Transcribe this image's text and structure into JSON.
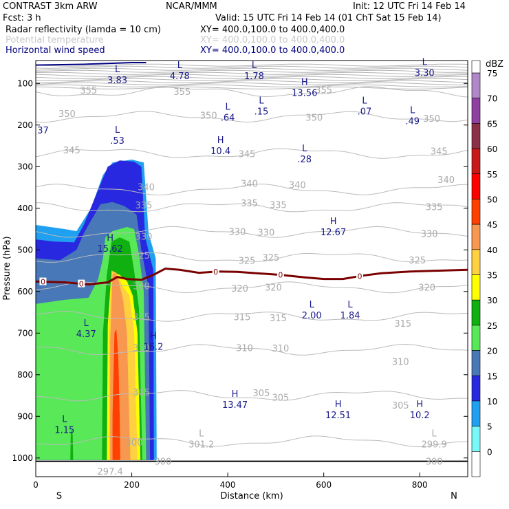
{
  "header": {
    "model": "CONTRAST   3km ARW",
    "org": "NCAR/MMM",
    "init": "Init: 12 UTC Fri 14 Feb 14",
    "fcst": "Fcst:     3 h",
    "valid": "Valid: 15 UTC Fri 14 Feb 14 (01 ChT Sat 15 Feb 14)",
    "fields": [
      {
        "name": "Radar reflectivity (lamda = 10 cm)",
        "xy": "XY= 400.0,100.0 to 400.0,400.0",
        "color": "#000000"
      },
      {
        "name": "Potential temperature",
        "xy": "XY= 400.0,100.0 to 400.0,400.0",
        "color": "#c8c8c8"
      },
      {
        "name": "Horizontal wind speed",
        "xy": "XY= 400.0,100.0 to 400.0,400.0",
        "color": "#000080"
      }
    ]
  },
  "chart_data": {
    "type": "cross-section",
    "xlabel": "Distance (km)",
    "ylabel": "Pressure (hPa)",
    "xlim": [
      0,
      900
    ],
    "ylim": [
      1045,
      45
    ],
    "x_ticks": [
      0,
      200,
      400,
      600,
      800
    ],
    "y_ticks": [
      100,
      200,
      300,
      400,
      500,
      600,
      700,
      800,
      900,
      1000
    ],
    "left_end_label": "S",
    "right_end_label": "N",
    "colorbar": {
      "unit": "dBZ",
      "levels": [
        {
          "label": "75",
          "color": "#b088c8"
        },
        {
          "label": "70",
          "color": "#9040a0"
        },
        {
          "label": "65",
          "color": "#8c3048"
        },
        {
          "label": "60",
          "color": "#c81818"
        },
        {
          "label": "55",
          "color": "#ff0000"
        },
        {
          "label": "50",
          "color": "#ff4000"
        },
        {
          "label": "45",
          "color": "#f89850"
        },
        {
          "label": "40",
          "color": "#ffd040"
        },
        {
          "label": "35",
          "color": "#ffff00"
        },
        {
          "label": "30",
          "color": "#10b010"
        },
        {
          "label": "25",
          "color": "#58e858"
        },
        {
          "label": "20",
          "color": "#4878b8"
        },
        {
          "label": "15",
          "color": "#2828e0"
        },
        {
          "label": "10",
          "color": "#20a0f0"
        },
        {
          "label": "5",
          "color": "#78f8f8"
        },
        {
          "label": "0",
          "color": "#ffffff"
        }
      ]
    },
    "theta_contours": [
      {
        "label": "355",
        "p": 120
      },
      {
        "label": "350",
        "p": 180
      },
      {
        "label": "345",
        "p": 268
      },
      {
        "label": "340",
        "p": 355
      },
      {
        "label": "335",
        "p": 398
      },
      {
        "label": "330",
        "p": 457
      },
      {
        "label": "325",
        "p": 518
      },
      {
        "label": "320",
        "p": 590
      },
      {
        "label": "315",
        "p": 660
      },
      {
        "label": "310",
        "p": 740
      },
      {
        "label": "305",
        "p": 850
      },
      {
        "label": "300",
        "p": 960
      }
    ],
    "theta_labels": [
      {
        "text": "355",
        "x": 110,
        "p": 116
      },
      {
        "text": "355",
        "x": 305,
        "p": 119
      },
      {
        "text": "355",
        "x": 600,
        "p": 115
      },
      {
        "text": "350",
        "x": 65,
        "p": 172
      },
      {
        "text": "350",
        "x": 360,
        "p": 176
      },
      {
        "text": "350",
        "x": 580,
        "p": 181
      },
      {
        "text": "350",
        "x": 825,
        "p": 184
      },
      {
        "text": "345",
        "x": 75,
        "p": 260
      },
      {
        "text": "345",
        "x": 440,
        "p": 269
      },
      {
        "text": "345",
        "x": 840,
        "p": 262
      },
      {
        "text": "340",
        "x": 230,
        "p": 348
      },
      {
        "text": "340",
        "x": 445,
        "p": 340
      },
      {
        "text": "340",
        "x": 545,
        "p": 343
      },
      {
        "text": "340",
        "x": 855,
        "p": 331
      },
      {
        "text": "335",
        "x": 225,
        "p": 392
      },
      {
        "text": "335",
        "x": 445,
        "p": 387
      },
      {
        "text": "335",
        "x": 505,
        "p": 391
      },
      {
        "text": "335",
        "x": 830,
        "p": 396
      },
      {
        "text": "330",
        "x": 225,
        "p": 467
      },
      {
        "text": "330",
        "x": 420,
        "p": 456
      },
      {
        "text": "330",
        "x": 480,
        "p": 457
      },
      {
        "text": "330",
        "x": 820,
        "p": 461
      },
      {
        "text": "325",
        "x": 220,
        "p": 513
      },
      {
        "text": "325",
        "x": 440,
        "p": 525
      },
      {
        "text": "325",
        "x": 490,
        "p": 518
      },
      {
        "text": "325",
        "x": 795,
        "p": 524
      },
      {
        "text": "320",
        "x": 220,
        "p": 586
      },
      {
        "text": "320",
        "x": 425,
        "p": 592
      },
      {
        "text": "320",
        "x": 495,
        "p": 590
      },
      {
        "text": "320",
        "x": 815,
        "p": 590
      },
      {
        "text": "315",
        "x": 220,
        "p": 661
      },
      {
        "text": "315",
        "x": 430,
        "p": 661
      },
      {
        "text": "315",
        "x": 505,
        "p": 663
      },
      {
        "text": "315",
        "x": 765,
        "p": 676
      },
      {
        "text": "310",
        "x": 220,
        "p": 735
      },
      {
        "text": "310",
        "x": 435,
        "p": 735
      },
      {
        "text": "310",
        "x": 510,
        "p": 736
      },
      {
        "text": "310",
        "x": 760,
        "p": 768
      },
      {
        "text": "305",
        "x": 220,
        "p": 842
      },
      {
        "text": "305",
        "x": 470,
        "p": 843
      },
      {
        "text": "305",
        "x": 510,
        "p": 854
      },
      {
        "text": "305",
        "x": 760,
        "p": 873
      },
      {
        "text": "300",
        "x": 205,
        "p": 962
      },
      {
        "text": "300",
        "x": 265,
        "p": 1008
      },
      {
        "text": "300",
        "x": 830,
        "p": 1008
      }
    ],
    "theta_extrema": [
      {
        "letter": "L",
        "value": "301.2",
        "x": 345,
        "p": 955
      },
      {
        "letter": "L",
        "value": "299.9",
        "x": 830,
        "p": 955
      },
      {
        "letter": "",
        "value": "297.4",
        "x": 155,
        "p": 1020
      }
    ],
    "wind_extrema": [
      {
        "letter": "L",
        "value": "3.83",
        "x": 170,
        "p": 80
      },
      {
        "letter": "L",
        "value": "4.78",
        "x": 300,
        "p": 70
      },
      {
        "letter": "L",
        "value": "1.78",
        "x": 455,
        "p": 70
      },
      {
        "letter": "H",
        "value": "13.56",
        "x": 560,
        "p": 110
      },
      {
        "letter": "L",
        "value": "3.30",
        "x": 810,
        "p": 62
      },
      {
        "letter": "L",
        "value": ".15",
        "x": 470,
        "p": 155
      },
      {
        "letter": "L",
        "value": ".07",
        "x": 685,
        "p": 155
      },
      {
        "letter": "L",
        "value": ".64",
        "x": 400,
        "p": 170
      },
      {
        "letter": "L",
        "value": ".49",
        "x": 785,
        "p": 178
      },
      {
        "letter": "",
        "value": "37",
        "x": 15,
        "p": 200
      },
      {
        "letter": "L",
        "value": ".53",
        "x": 170,
        "p": 225
      },
      {
        "letter": "H",
        "value": "10.4",
        "x": 385,
        "p": 250
      },
      {
        "letter": "L",
        "value": ".28",
        "x": 560,
        "p": 270
      },
      {
        "letter": "H",
        "value": "12.67",
        "x": 620,
        "p": 445
      },
      {
        "letter": "H",
        "value": "15.62",
        "x": 155,
        "p": 485
      },
      {
        "letter": "L",
        "value": "2.00",
        "x": 575,
        "p": 645
      },
      {
        "letter": "L",
        "value": "1.84",
        "x": 655,
        "p": 645
      },
      {
        "letter": "L",
        "value": "4.37",
        "x": 105,
        "p": 690
      },
      {
        "letter": "H",
        "value": "16.2",
        "x": 245,
        "p": 720
      },
      {
        "letter": "H",
        "value": "13.47",
        "x": 415,
        "p": 860
      },
      {
        "letter": "H",
        "value": "12.51",
        "x": 630,
        "p": 885
      },
      {
        "letter": "H",
        "value": "10.2",
        "x": 800,
        "p": 885
      },
      {
        "letter": "L",
        "value": "1.15",
        "x": 60,
        "p": 920
      }
    ],
    "freezing_level": {
      "label": "0",
      "label_positions": [
        15,
        95,
        375,
        510,
        675
      ],
      "points": [
        [
          0,
          576
        ],
        [
          60,
          578
        ],
        [
          110,
          583
        ],
        [
          150,
          578
        ],
        [
          170,
          565
        ],
        [
          190,
          570
        ],
        [
          220,
          572
        ],
        [
          245,
          560
        ],
        [
          270,
          545
        ],
        [
          300,
          548
        ],
        [
          340,
          555
        ],
        [
          380,
          552
        ],
        [
          420,
          553
        ],
        [
          460,
          556
        ],
        [
          510,
          560
        ],
        [
          560,
          566
        ],
        [
          600,
          570
        ],
        [
          640,
          570
        ],
        [
          680,
          562
        ],
        [
          720,
          556
        ],
        [
          780,
          552
        ],
        [
          840,
          550
        ],
        [
          900,
          548
        ]
      ]
    },
    "reflectivity": [
      {
        "dbz": 10,
        "poly": [
          [
            0,
            440
          ],
          [
            30,
            445
          ],
          [
            60,
            450
          ],
          [
            85,
            455
          ],
          [
            115,
            400
          ],
          [
            140,
            320
          ],
          [
            160,
            290
          ],
          [
            200,
            283
          ],
          [
            225,
            290
          ],
          [
            235,
            460
          ],
          [
            250,
            520
          ],
          [
            252,
            1005
          ],
          [
            0,
            1005
          ]
        ]
      },
      {
        "dbz": 15,
        "poly": [
          [
            0,
            475
          ],
          [
            40,
            480
          ],
          [
            80,
            482
          ],
          [
            100,
            440
          ],
          [
            125,
            370
          ],
          [
            150,
            300
          ],
          [
            175,
            285
          ],
          [
            205,
            288
          ],
          [
            220,
            300
          ],
          [
            228,
            470
          ],
          [
            245,
            550
          ],
          [
            246,
            1005
          ],
          [
            0,
            1005
          ]
        ]
      },
      {
        "dbz": 20,
        "poly": [
          [
            0,
            520
          ],
          [
            50,
            525
          ],
          [
            85,
            500
          ],
          [
            100,
            460
          ],
          [
            120,
            420
          ],
          [
            135,
            390
          ],
          [
            160,
            385
          ],
          [
            185,
            395
          ],
          [
            210,
            415
          ],
          [
            220,
            500
          ],
          [
            235,
            590
          ],
          [
            238,
            1005
          ],
          [
            0,
            1005
          ]
        ]
      },
      {
        "dbz": 25,
        "poly": [
          [
            0,
            630
          ],
          [
            60,
            620
          ],
          [
            110,
            615
          ],
          [
            130,
            570
          ],
          [
            140,
            520
          ],
          [
            145,
            470
          ],
          [
            160,
            455
          ],
          [
            190,
            445
          ],
          [
            205,
            450
          ],
          [
            215,
            510
          ],
          [
            225,
            600
          ],
          [
            230,
            1005
          ],
          [
            0,
            1005
          ]
        ]
      },
      {
        "dbz": 30,
        "poly": [
          [
            138,
            1005
          ],
          [
            140,
            700
          ],
          [
            148,
            560
          ],
          [
            158,
            480
          ],
          [
            175,
            470
          ],
          [
            195,
            480
          ],
          [
            205,
            550
          ],
          [
            215,
            640
          ],
          [
            222,
            1005
          ]
        ]
      },
      {
        "dbz": 35,
        "poly": [
          [
            148,
            1005
          ],
          [
            150,
            680
          ],
          [
            156,
            580
          ],
          [
            163,
            555
          ],
          [
            175,
            560
          ],
          [
            190,
            575
          ],
          [
            202,
            610
          ],
          [
            212,
            700
          ],
          [
            218,
            1005
          ]
        ]
      },
      {
        "dbz": 40,
        "poly": [
          [
            152,
            1005
          ],
          [
            152,
            700
          ],
          [
            158,
            550
          ],
          [
            168,
            555
          ],
          [
            180,
            585
          ],
          [
            195,
            610
          ],
          [
            205,
            700
          ],
          [
            212,
            1005
          ]
        ]
      },
      {
        "dbz": 45,
        "poly": [
          [
            155,
            1005
          ],
          [
            155,
            720
          ],
          [
            160,
            560
          ],
          [
            166,
            555
          ],
          [
            172,
            570
          ],
          [
            182,
            620
          ],
          [
            190,
            700
          ],
          [
            197,
            1005
          ]
        ]
      },
      {
        "dbz": 50,
        "poly": [
          [
            160,
            1005
          ],
          [
            160,
            900
          ],
          [
            164,
            700
          ],
          [
            168,
            690
          ],
          [
            172,
            760
          ],
          [
            175,
            900
          ],
          [
            176,
            1005
          ]
        ]
      },
      {
        "dbz": 30,
        "poly": [
          [
            72,
            1005
          ],
          [
            73,
            940
          ],
          [
            75,
            930
          ],
          [
            77,
            945
          ],
          [
            78,
            1005
          ]
        ]
      }
    ],
    "top_wind_line": {
      "color": "#000080",
      "points": [
        [
          0,
          56
        ],
        [
          100,
          54
        ],
        [
          150,
          52
        ],
        [
          200,
          50
        ],
        [
          230,
          50
        ]
      ]
    }
  }
}
